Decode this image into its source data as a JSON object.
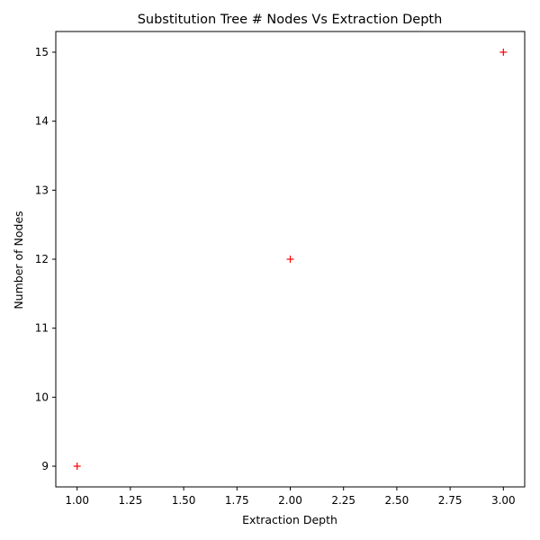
{
  "chart_data": {
    "type": "scatter",
    "title": "Substitution Tree # Nodes Vs Extraction Depth",
    "xlabel": "Extraction Depth",
    "ylabel": "Number of Nodes",
    "xlim": [
      0.9,
      3.1
    ],
    "ylim": [
      8.7,
      15.3
    ],
    "xticks": [
      1.0,
      1.25,
      1.5,
      1.75,
      2.0,
      2.25,
      2.5,
      2.75,
      3.0
    ],
    "xtick_labels": [
      "1.00",
      "1.25",
      "1.50",
      "1.75",
      "2.00",
      "2.25",
      "2.50",
      "2.75",
      "3.00"
    ],
    "yticks": [
      9,
      10,
      11,
      12,
      13,
      14,
      15
    ],
    "ytick_labels": [
      "9",
      "10",
      "11",
      "12",
      "13",
      "14",
      "15"
    ],
    "grid": false,
    "marker": "plus",
    "marker_color": "#ff0000",
    "series": [
      {
        "x": [
          1,
          2,
          3
        ],
        "y": [
          9,
          12,
          15
        ]
      }
    ]
  }
}
